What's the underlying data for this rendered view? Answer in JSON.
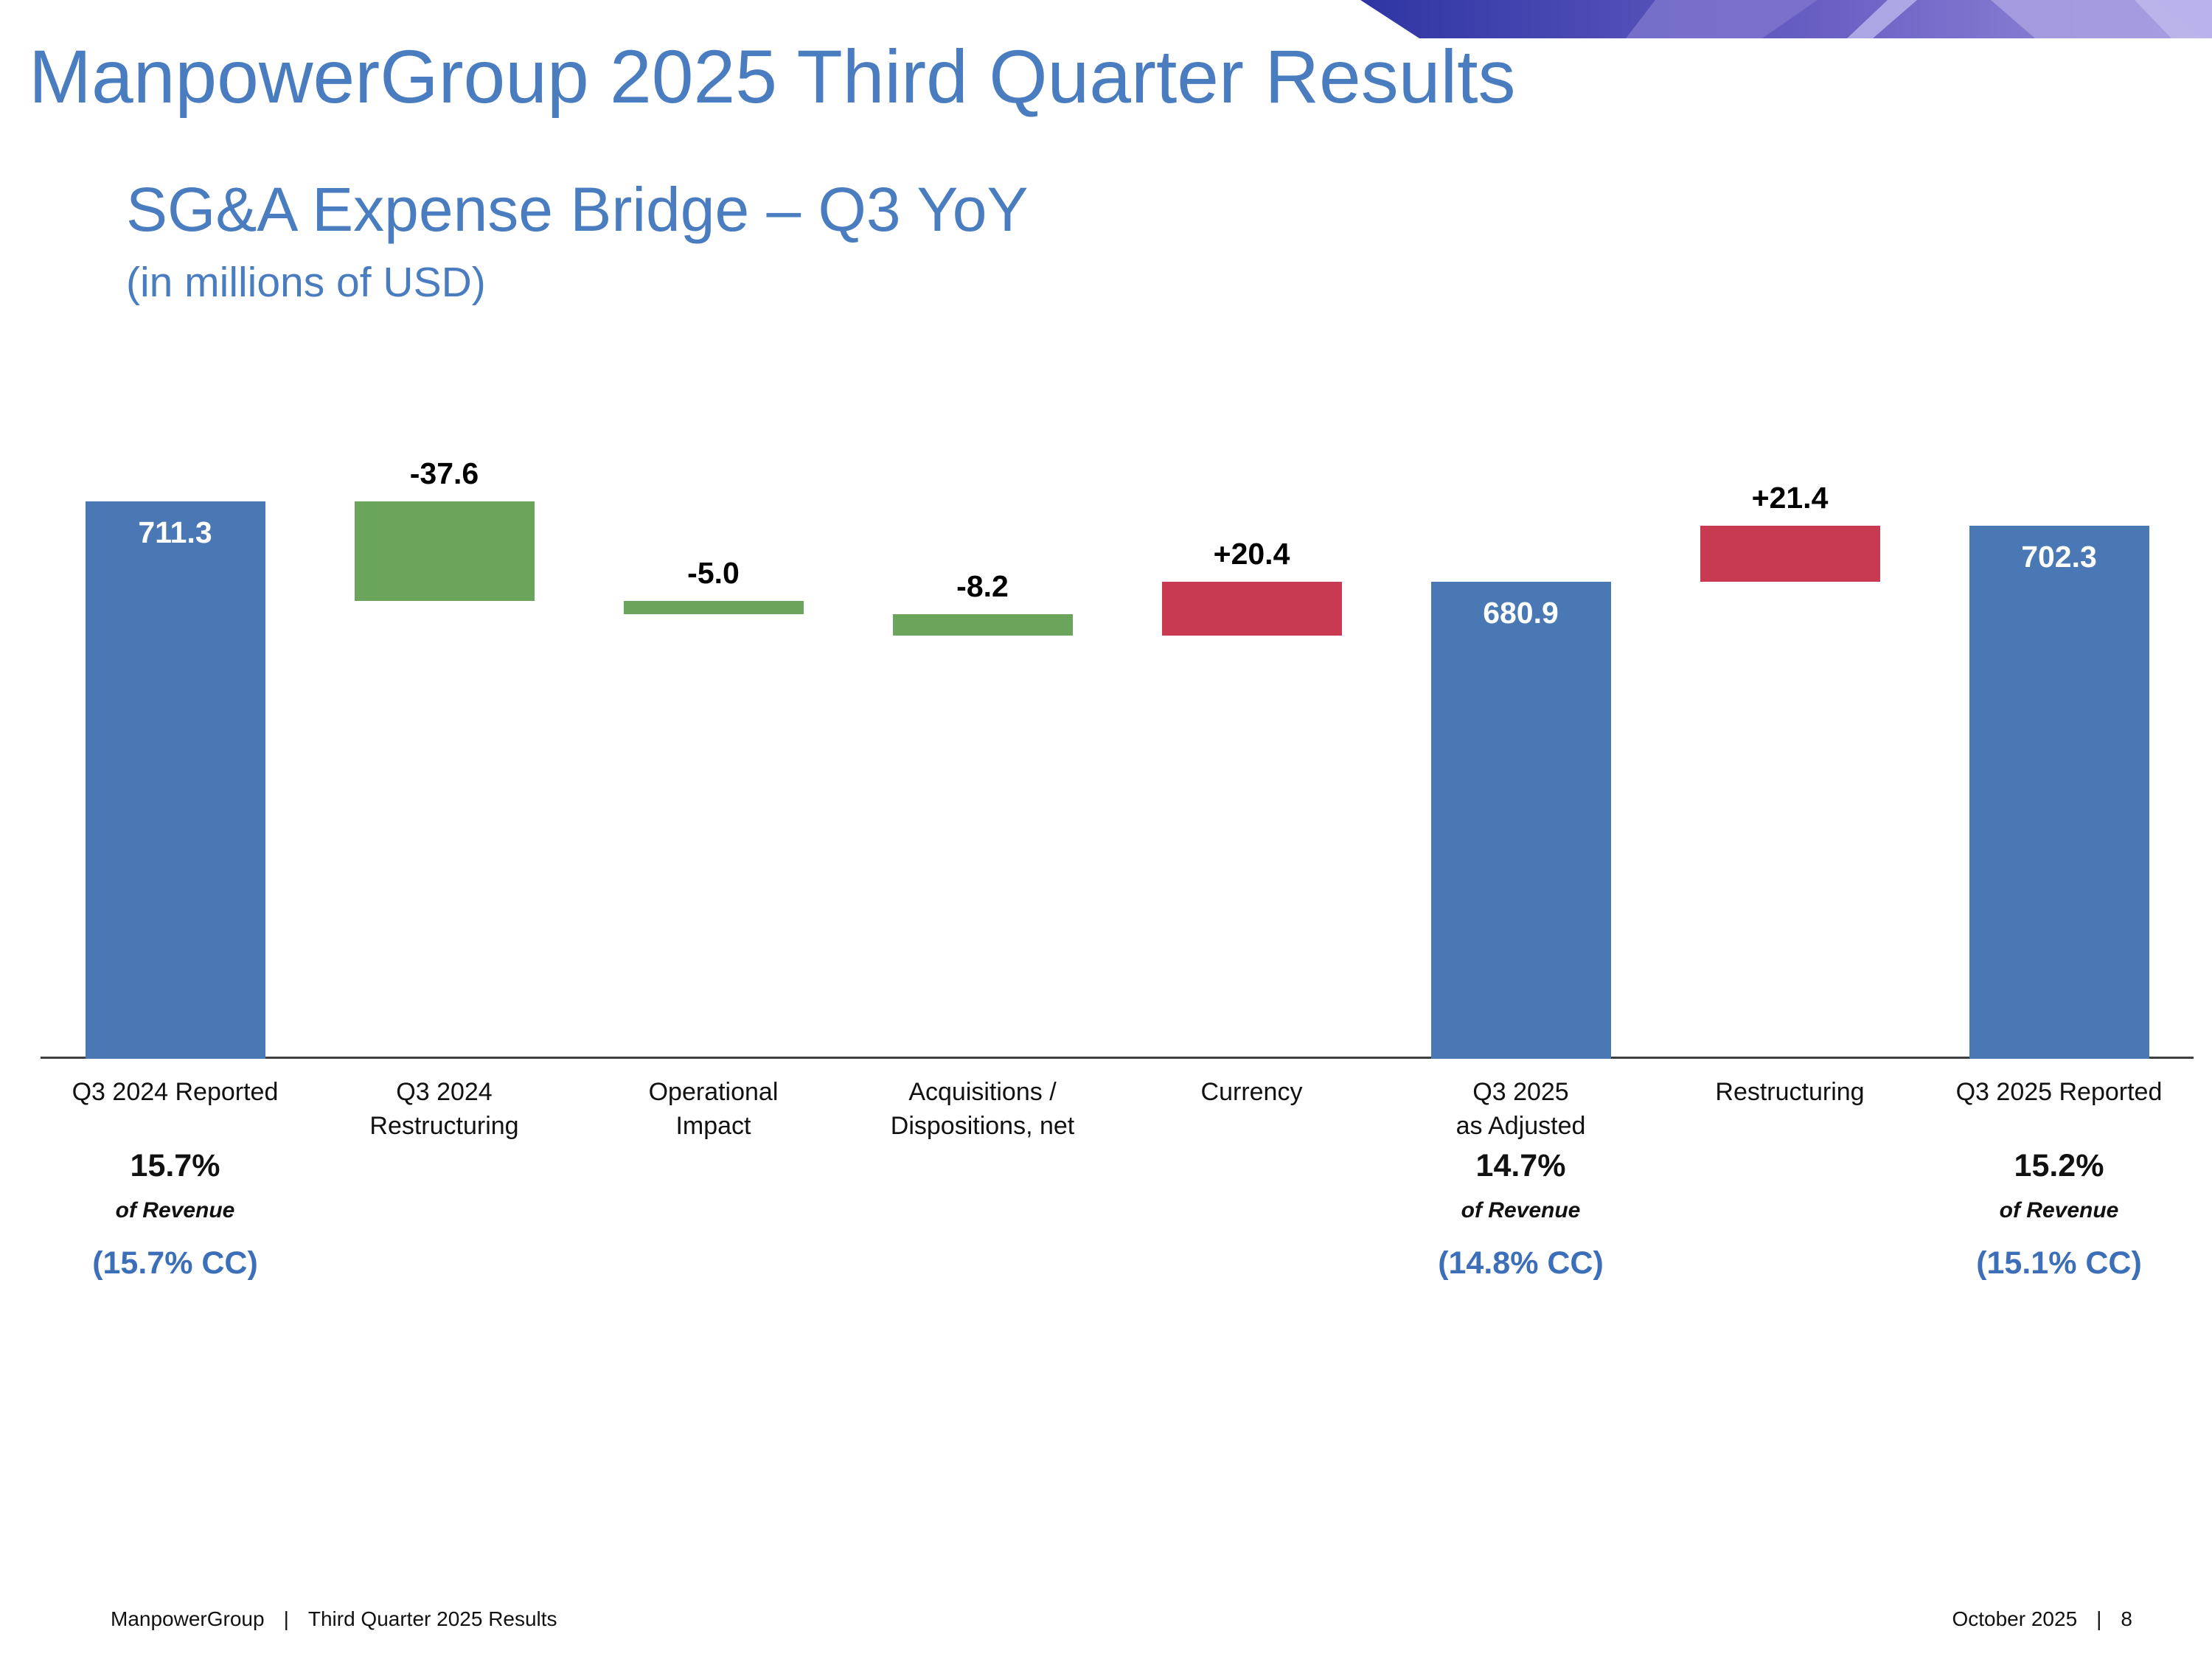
{
  "slide": {
    "title": "ManpowerGroup 2025 Third Quarter Results",
    "chart_title": "SG&A Expense Bridge – Q3 YoY",
    "chart_subtitle": "(in millions of USD)",
    "footer": {
      "left_brand": "ManpowerGroup",
      "separator": "|",
      "left_text": "Third Quarter 2025 Results",
      "right_date": "October 2025",
      "page": "8"
    }
  },
  "chart_data": {
    "type": "waterfall",
    "title": "SG&A Expense Bridge – Q3 YoY",
    "subtitle": "(in millions of USD)",
    "unit": "millions of USD",
    "axis_min": 500,
    "axis_max": 745,
    "grid": false,
    "legend": "none",
    "colors": {
      "total": "#4a78b4",
      "decrease": "#6ba55c",
      "increase": "#c73a52",
      "accent_blue": "#4a7cc0",
      "cc_blue": "#3c6fb8"
    },
    "bars": [
      {
        "label": "Q3 2024 Reported",
        "kind": "total",
        "value": 711.3,
        "display": "711.3",
        "pct": "15.7%",
        "pct_sub": "of Revenue",
        "cc": "(15.7% CC)"
      },
      {
        "label": "Q3 2024\nRestructuring",
        "kind": "delta",
        "value": -37.6,
        "display": "-37.6"
      },
      {
        "label": "Operational\nImpact",
        "kind": "delta",
        "value": -5.0,
        "display": "-5.0"
      },
      {
        "label": "Acquisitions /\nDispositions, net",
        "kind": "delta",
        "value": -8.2,
        "display": "-8.2"
      },
      {
        "label": "Currency",
        "kind": "delta",
        "value": 20.4,
        "display": "+20.4"
      },
      {
        "label": "Q3 2025\nas Adjusted",
        "kind": "total",
        "value": 680.9,
        "display": "680.9",
        "pct": "14.7%",
        "pct_sub": "of Revenue",
        "cc": "(14.8% CC)"
      },
      {
        "label": "Restructuring",
        "kind": "delta",
        "value": 21.4,
        "display": "+21.4"
      },
      {
        "label": "Q3 2025 Reported",
        "kind": "total",
        "value": 702.3,
        "display": "702.3",
        "pct": "15.2%",
        "pct_sub": "of Revenue",
        "cc": "(15.1% CC)"
      }
    ]
  }
}
